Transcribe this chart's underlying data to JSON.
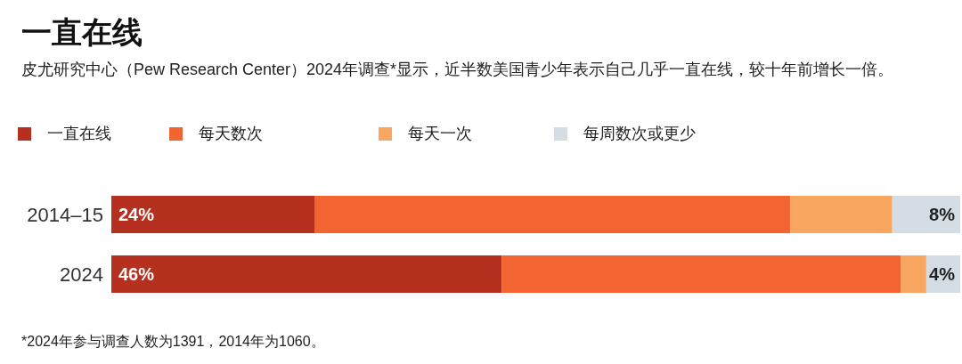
{
  "chart_data": {
    "type": "bar",
    "orientation": "horizontal",
    "stacked": true,
    "title": "一直在线",
    "subtitle": "皮尤研究中心（Pew Research Center）2024年调查*显示，近半数美国青少年表示自己几乎一直在线，较十年前增长一倍。",
    "categories": [
      "2014–15",
      "2024"
    ],
    "series": [
      {
        "name": "一直在线",
        "color": "#b5301f",
        "values": [
          24,
          46
        ],
        "value_labels": [
          "24%",
          "46%"
        ]
      },
      {
        "name": "每天数次",
        "color": "#f26531",
        "values": [
          56,
          47
        ],
        "value_labels": [
          null,
          null
        ]
      },
      {
        "name": "每天一次",
        "color": "#f9a661",
        "values": [
          12,
          3
        ],
        "value_labels": [
          null,
          null
        ]
      },
      {
        "name": "每周数次或更少",
        "color": "#d5dde4",
        "values": [
          8,
          4
        ],
        "value_labels": [
          "8%",
          "4%"
        ]
      }
    ],
    "legend": "top left",
    "annotations": [
      "*2024年参与调查人数为1391，2014年为1060。"
    ]
  }
}
